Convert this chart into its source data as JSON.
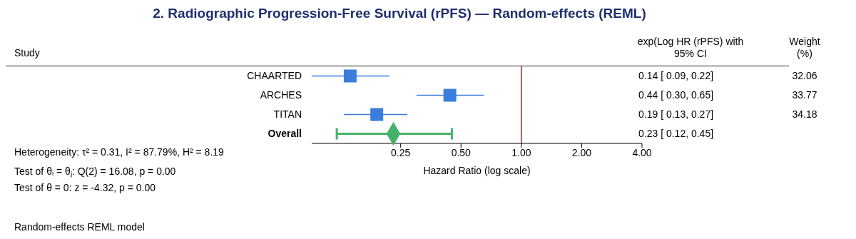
{
  "chart_data": {
    "type": "scatter",
    "orientation": "horizontal",
    "title": "2. Radiographic Progression-Free Survival (rPFS) — Random-effects (REML)",
    "xlabel": "Hazard Ratio (log scale)",
    "categories": [
      "CHAARTED",
      "ARCHES",
      "TITAN",
      "Overall"
    ],
    "series": [
      {
        "marker": "square",
        "color": "#3b7ddd",
        "values": [
          0.14,
          0.44,
          0.19,
          null
        ],
        "errors": [
          [
            0.09,
            0.22
          ],
          [
            0.3,
            0.65
          ],
          [
            0.13,
            0.27
          ],
          null
        ]
      },
      {
        "marker": "diamond",
        "color": "#45b26b",
        "values": [
          null,
          null,
          null,
          0.23
        ],
        "errors": [
          null,
          null,
          null,
          [
            0.12,
            0.45
          ]
        ]
      }
    ],
    "value_labels": [
      "0.14 [ 0.09, 0.22]",
      "0.44 [ 0.30, 0.65]",
      "0.19 [ 0.13, 0.27]",
      "0.23 [ 0.12, 0.45]"
    ],
    "log": "x",
    "xlim": [
      0.09,
      4
    ],
    "xticks": [
      {
        "value": 0.25,
        "label": "0.25"
      },
      {
        "value": 0.5,
        "label": "0.50"
      },
      {
        "value": 1,
        "label": "1.00"
      },
      {
        "value": 2,
        "label": "2.00"
      },
      {
        "value": 4,
        "label": "4.00"
      }
    ],
    "ref_lines": [
      {
        "axis": "x",
        "value": 1,
        "color": "#b22222"
      }
    ],
    "annotations": [
      "Study",
      "exp(Log HR (rPFS) with 95% CI",
      "Weight (%)",
      "Heterogeneity: τ² = 0.31, I² = 87.79%, H² = 8.19",
      "Test of θᵢ = θⱼ: Q(2) = 16.08, p = 0.00",
      "Test of θ = 0: z = -4.32, p = 0.00",
      "Random-effects REML model",
      "32.06",
      "33.77",
      "34.18"
    ],
    "grid": false,
    "legend": false
  }
}
